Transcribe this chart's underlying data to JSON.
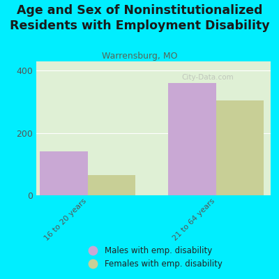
{
  "title": "Age and Sex of Noninstitutionalized\nResidents with Employment Disability",
  "subtitle": "Warrensburg, MO",
  "categories": [
    "16 to 20 years",
    "21 to 64 years"
  ],
  "males": [
    140,
    360
  ],
  "females": [
    65,
    305
  ],
  "bar_width": 0.28,
  "ylim": [
    0,
    430
  ],
  "yticks": [
    0,
    200,
    400
  ],
  "male_color": "#c9a8d4",
  "female_color": "#c8cf96",
  "bg_color": "#00eeff",
  "plot_bg": "#dff0d5",
  "title_fontsize": 12.5,
  "subtitle_fontsize": 9,
  "legend_male": "Males with emp. disability",
  "legend_female": "Females with emp. disability",
  "watermark": "City-Data.com"
}
